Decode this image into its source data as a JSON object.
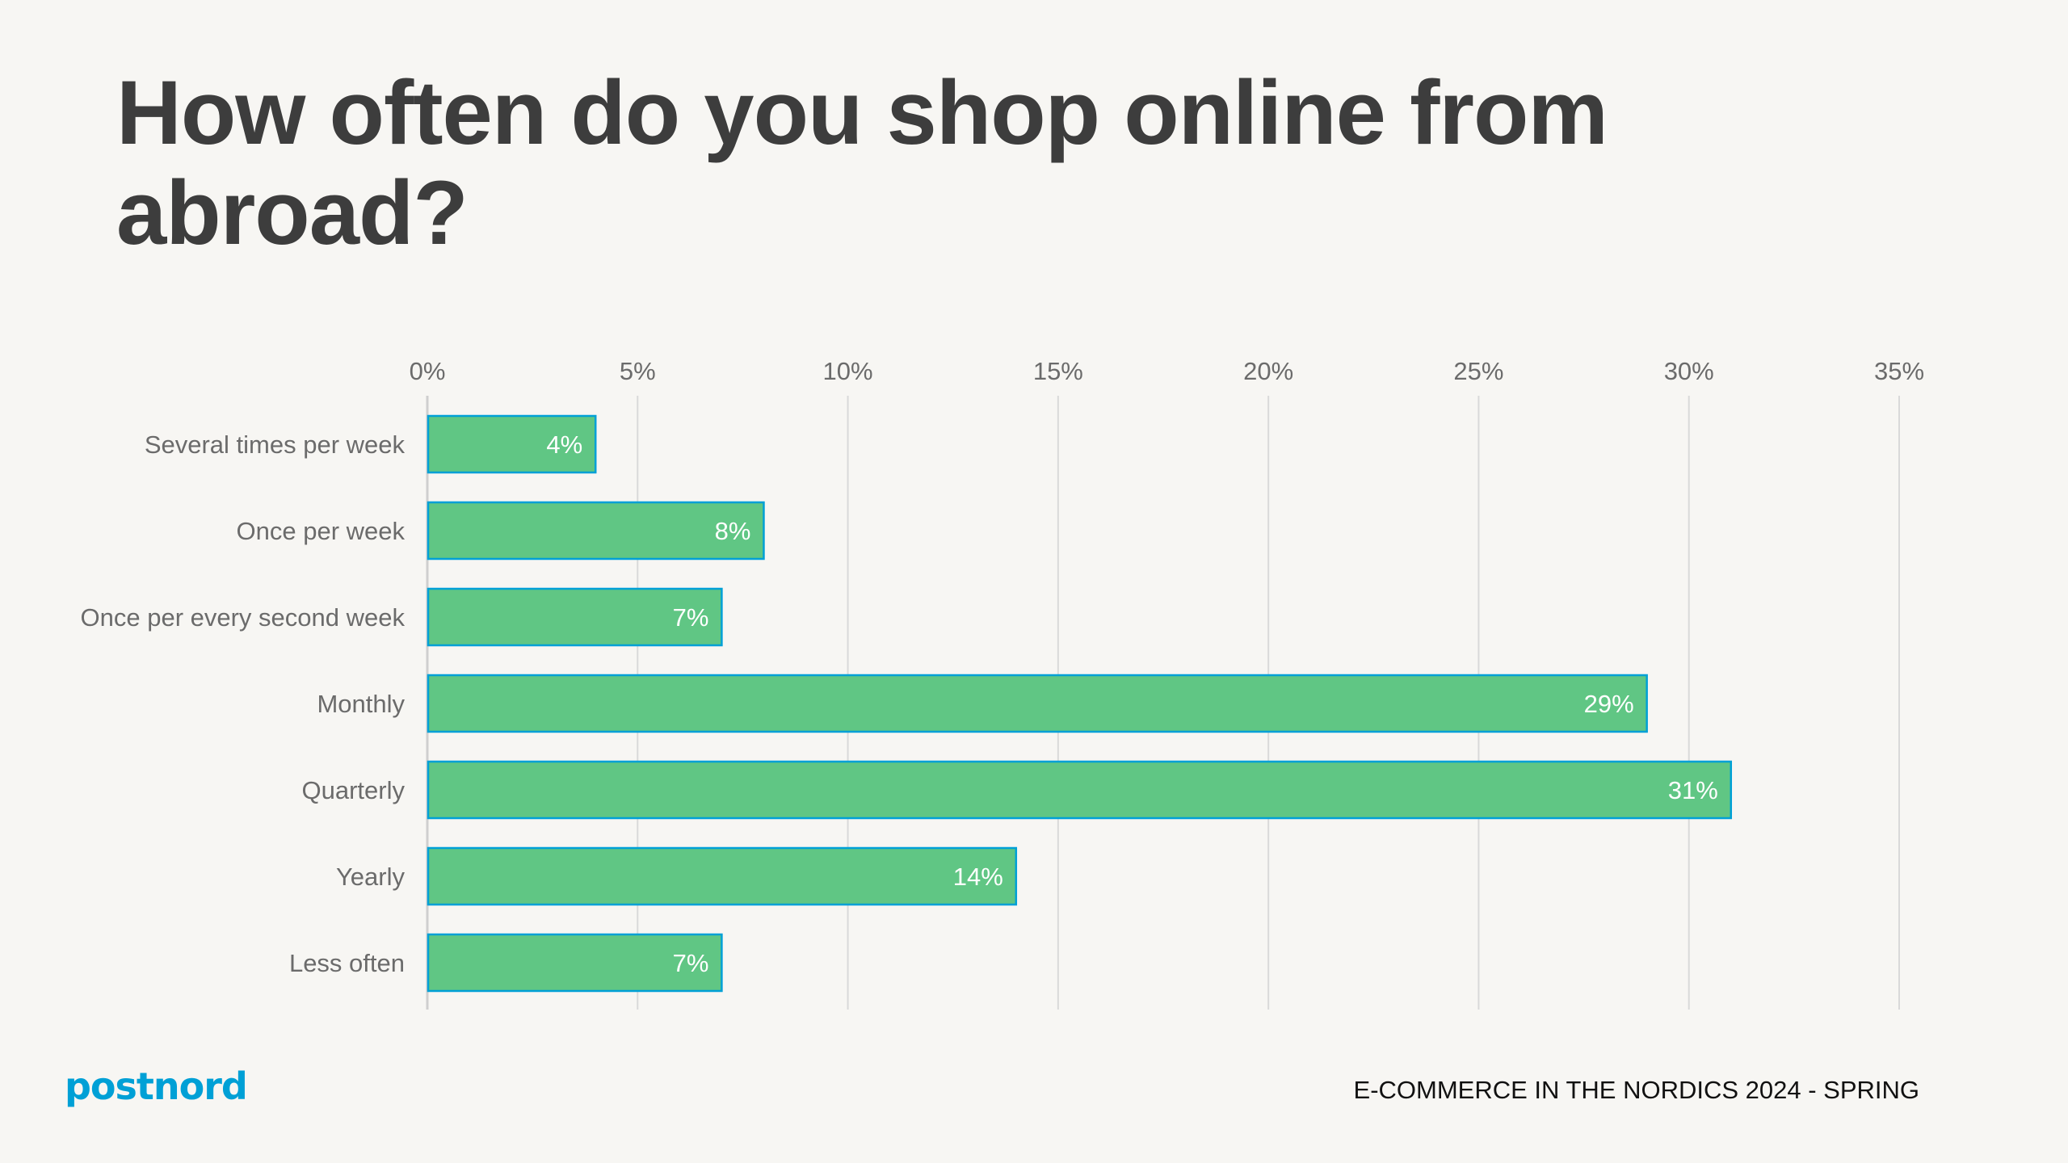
{
  "title": "How often do you shop online from abroad?",
  "footer": "E-COMMERCE IN THE NORDICS 2024 - SPRING",
  "logo_text": "postnord",
  "colors": {
    "bar_fill": "#60c684",
    "bar_border": "#00a0d6",
    "grid": "#d9d9d9",
    "brand": "#00a0d6"
  },
  "chart_data": {
    "type": "bar",
    "orientation": "horizontal",
    "categories": [
      "Several times per week",
      "Once per week",
      "Once per every second week",
      "Monthly",
      "Quarterly",
      "Yearly",
      "Less often"
    ],
    "values": [
      4,
      8,
      7,
      29,
      31,
      14,
      7
    ],
    "data_labels": [
      "4%",
      "8%",
      "7%",
      "29%",
      "31%",
      "14%",
      "7%"
    ],
    "xlim": [
      0,
      35
    ],
    "x_ticks": [
      0,
      5,
      10,
      15,
      20,
      25,
      30,
      35
    ],
    "x_tick_labels": [
      "0%",
      "5%",
      "10%",
      "15%",
      "20%",
      "25%",
      "30%",
      "35%"
    ],
    "x_axis_position": "top",
    "grid": true,
    "legend": false
  }
}
